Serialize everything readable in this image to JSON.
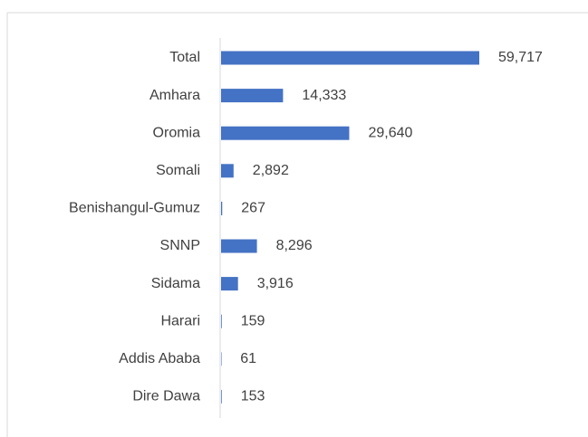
{
  "chart_data": {
    "type": "bar",
    "orientation": "horizontal",
    "categories": [
      "Total",
      "Amhara",
      "Oromia",
      "Somali",
      "Benishangul-Gumuz",
      "SNNP",
      "Sidama",
      "Harari",
      "Addis Ababa",
      "Dire Dawa"
    ],
    "values": [
      59717,
      14333,
      29640,
      2892,
      267,
      8296,
      3916,
      159,
      61,
      153
    ],
    "value_labels": [
      "59,717",
      "14,333",
      "29,640",
      "2,892",
      "267",
      "8,296",
      "3,916",
      "159",
      "61",
      "153"
    ],
    "color": "#4472c4"
  }
}
